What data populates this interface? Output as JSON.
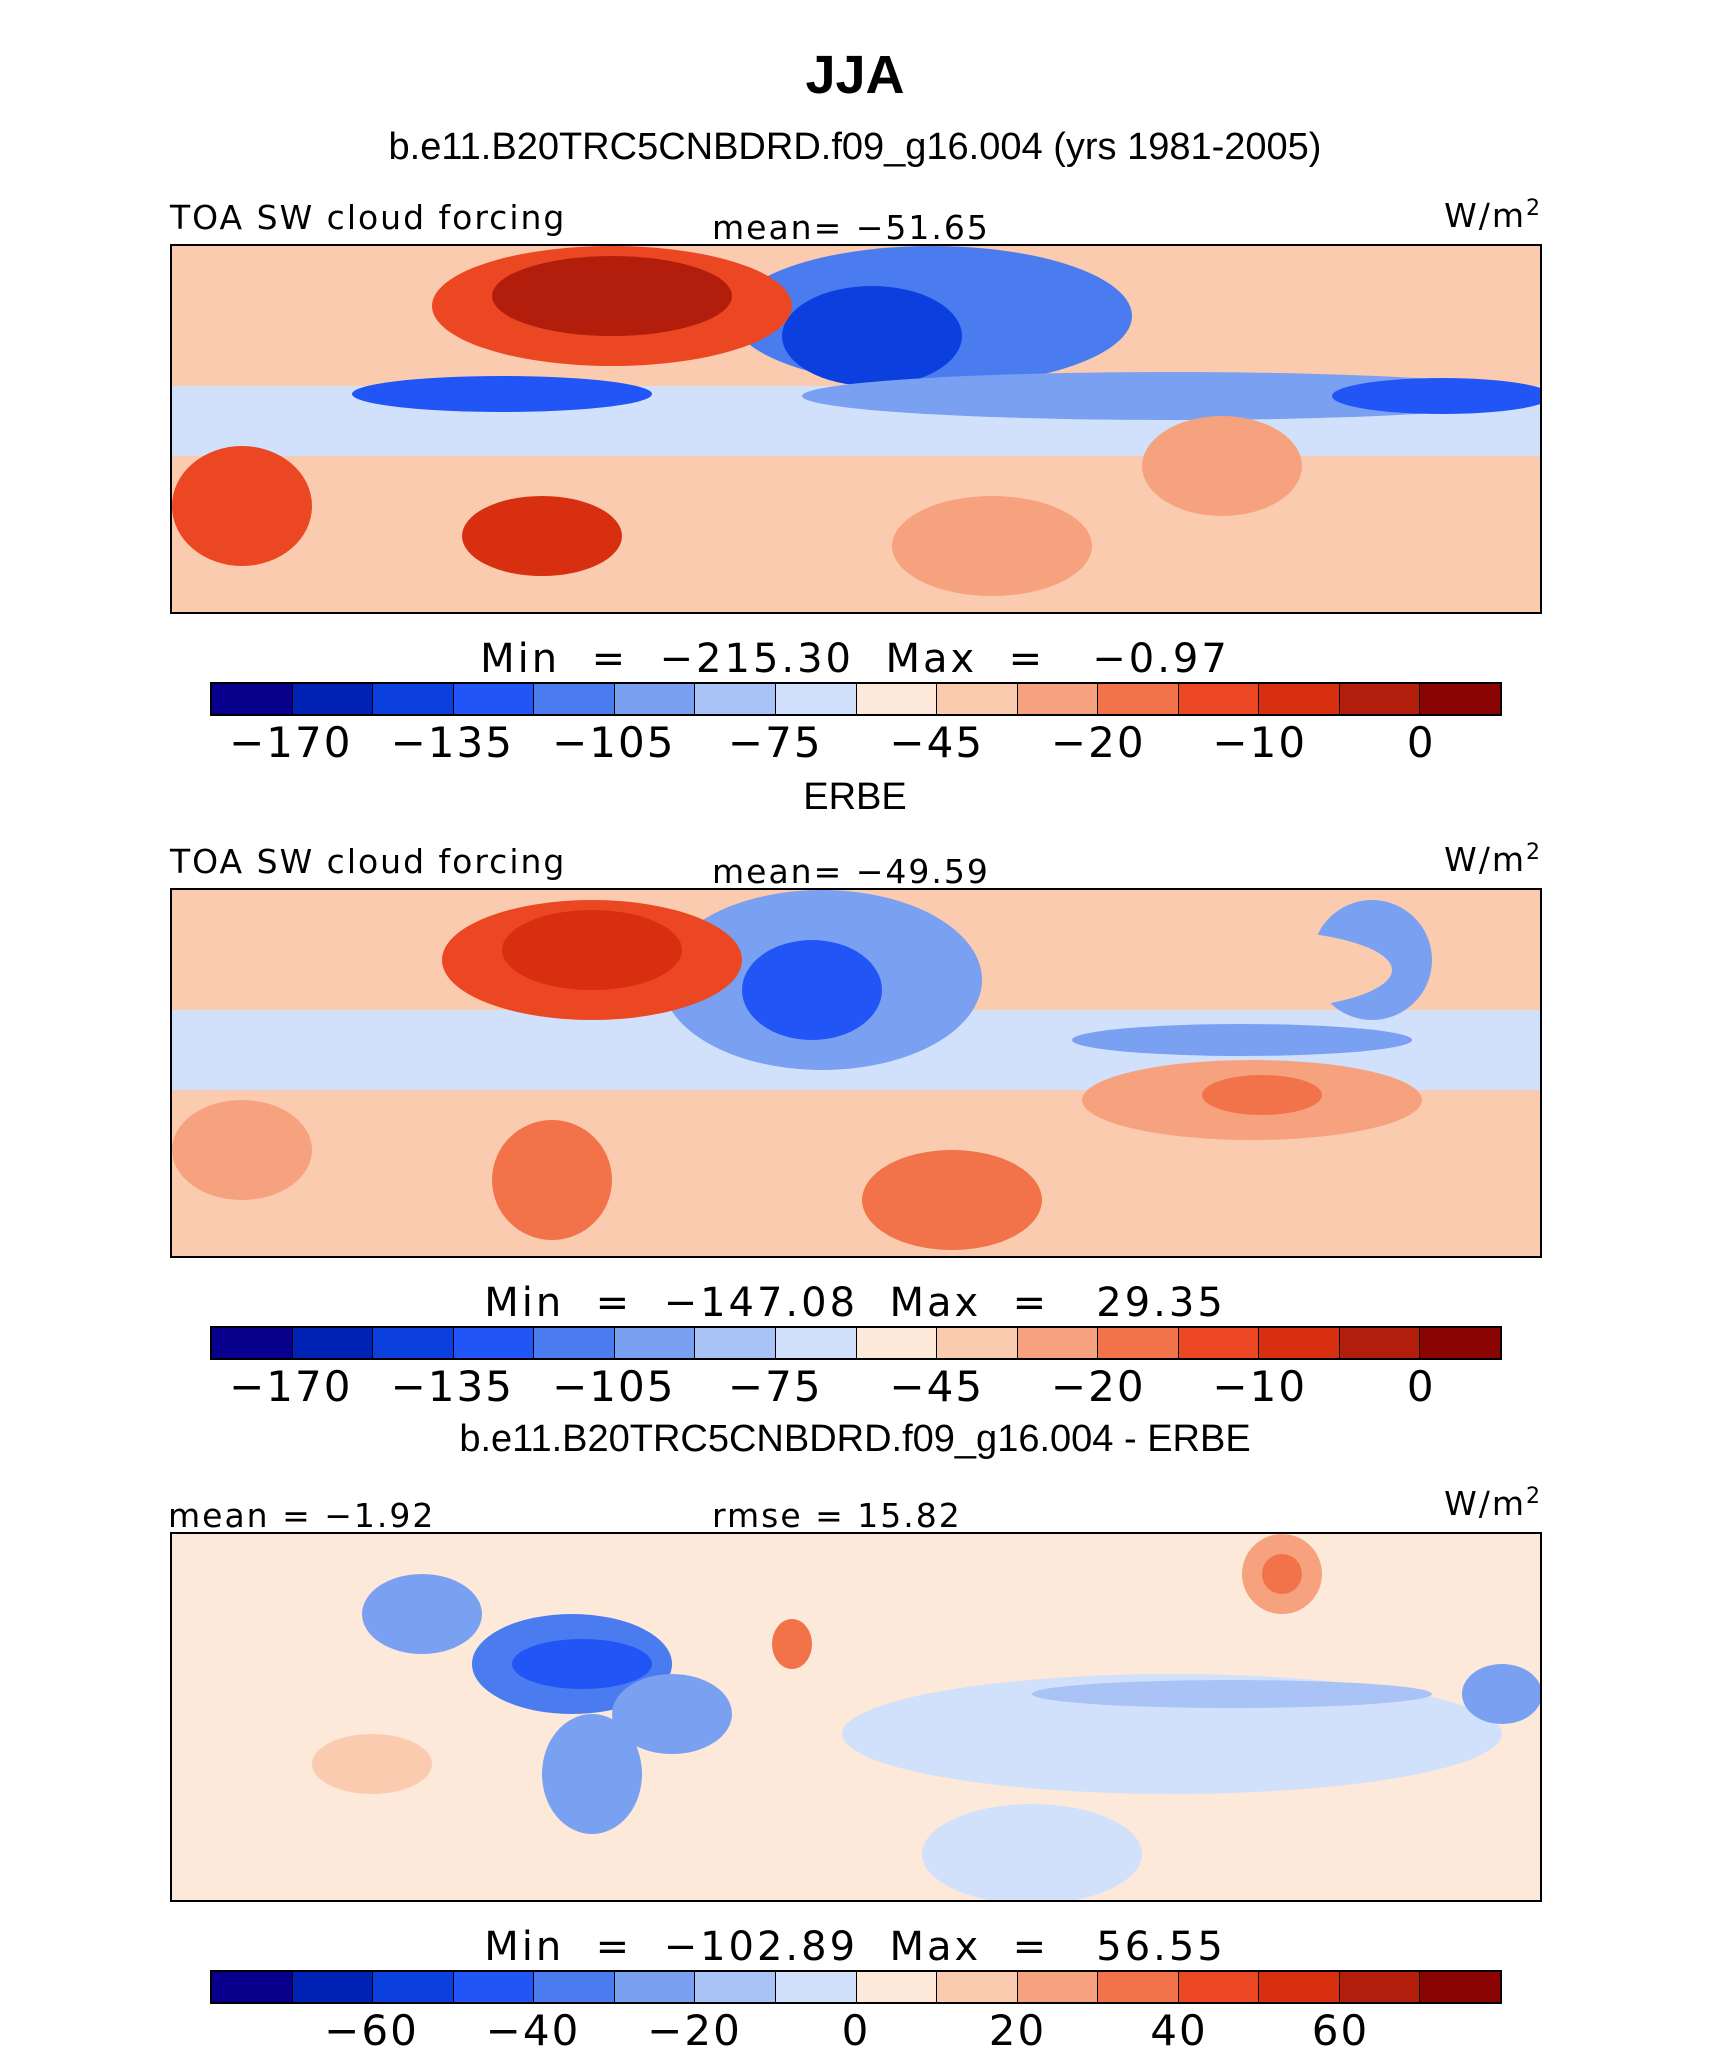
{
  "title": "JJA",
  "colors": [
    "#08008c",
    "#0022b4",
    "#0b3fde",
    "#2255f5",
    "#4a7cf0",
    "#7aa0f2",
    "#a9c3f7",
    "#d2e1fb",
    "#fde9d9",
    "#fbcbb0",
    "#f7a27e",
    "#f2724a",
    "#ea4722",
    "#d72f10",
    "#b21e0b",
    "#8a0404"
  ],
  "panels": [
    {
      "id": "model",
      "subtitle": "b.e11.B20TRC5CNBDRD.f09_g16.004 (yrs 1981-2005)",
      "left_label": "TOA SW cloud forcing",
      "center_label": "mean= −51.65",
      "units_base": "W/m",
      "units_sup": "2",
      "min_label": "Min  =  −215.30",
      "max_label": "Max  =   −0.97",
      "colorbar_ticks": [
        "−170",
        "−135",
        "−105",
        "−75",
        "−45",
        "−20",
        "−10",
        "0"
      ]
    },
    {
      "id": "obs",
      "subtitle": "ERBE",
      "left_label": "TOA SW cloud forcing",
      "center_label": "mean= −49.59",
      "units_base": "W/m",
      "units_sup": "2",
      "min_label": "Min  =  −147.08",
      "max_label": "Max  =   29.35",
      "colorbar_ticks": [
        "−170",
        "−135",
        "−105",
        "−75",
        "−45",
        "−20",
        "−10",
        "0"
      ]
    },
    {
      "id": "diff",
      "subtitle": "b.e11.B20TRC5CNBDRD.f09_g16.004 - ERBE",
      "left_label": "mean =   −1.92",
      "center_label": "rmse =   15.82",
      "units_base": "W/m",
      "units_sup": "2",
      "min_label": "Min  =  −102.89",
      "max_label": "Max  =   56.55",
      "colorbar_ticks": [
        "−60",
        "−40",
        "−20",
        "0",
        "20",
        "40",
        "60"
      ]
    }
  ],
  "chart_data": [
    {
      "type": "heatmap",
      "title": "b.e11.B20TRC5CNBDRD.f09_g16.004 (yrs 1981-2005)",
      "variable": "TOA SW cloud forcing",
      "units": "W/m2",
      "mean": -51.65,
      "min": -215.3,
      "max": -0.97,
      "colorbar_levels": [
        -170,
        -150,
        -135,
        -120,
        -105,
        -90,
        -75,
        -60,
        -45,
        -30,
        -20,
        -15,
        -10,
        -5,
        0
      ]
    },
    {
      "type": "heatmap",
      "title": "ERBE",
      "variable": "TOA SW cloud forcing",
      "units": "W/m2",
      "mean": -49.59,
      "min": -147.08,
      "max": 29.35,
      "colorbar_levels": [
        -170,
        -150,
        -135,
        -120,
        -105,
        -90,
        -75,
        -60,
        -45,
        -30,
        -20,
        -15,
        -10,
        -5,
        0
      ]
    },
    {
      "type": "heatmap",
      "title": "b.e11.B20TRC5CNBDRD.f09_g16.004 - ERBE",
      "units": "W/m2",
      "mean": -1.92,
      "rmse": 15.82,
      "min": -102.89,
      "max": 56.55,
      "colorbar_levels": [
        -70,
        -60,
        -50,
        -40,
        -30,
        -20,
        -10,
        0,
        10,
        20,
        30,
        40,
        50,
        60,
        70
      ]
    }
  ]
}
